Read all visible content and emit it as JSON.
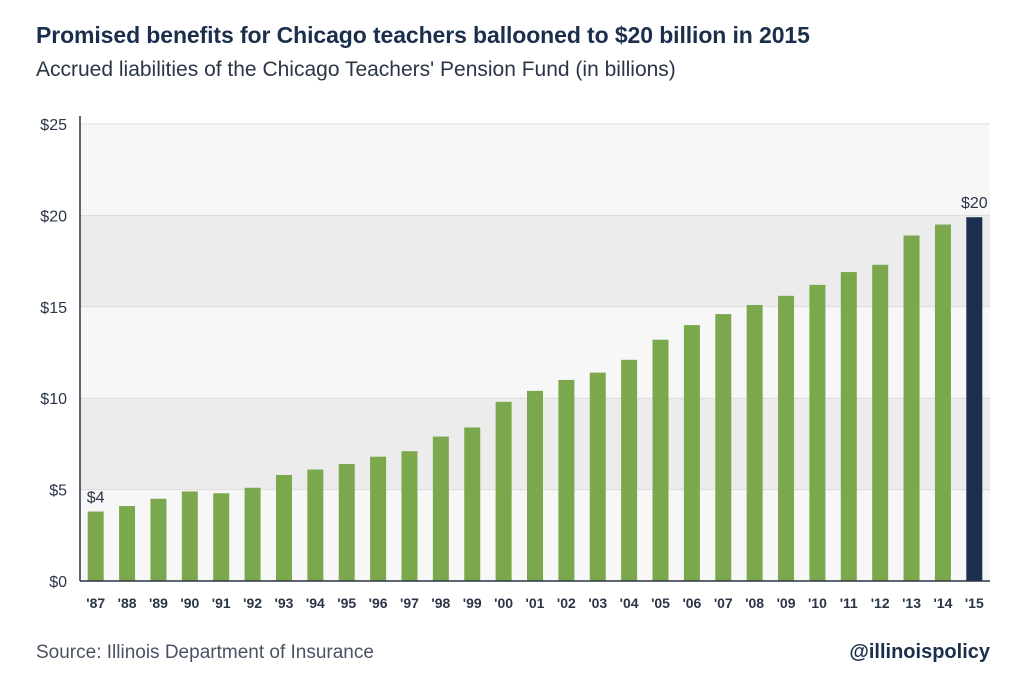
{
  "title": "Promised benefits for Chicago teachers ballooned to $20 billion in 2015",
  "subtitle": "Accrued liabilities of the Chicago Teachers' Pension Fund (in billions)",
  "source": "Source: Illinois Department of Insurance",
  "handle": "@illinoispolicy",
  "colors": {
    "bar": "#7ba84d",
    "highlight": "#1b2f4d",
    "band_dark": "#ececed",
    "band_light": "#f8f7f7",
    "axis": "#2b3547"
  },
  "chart_data": {
    "type": "bar",
    "title": "Promised benefits for Chicago teachers ballooned to $20 billion in 2015",
    "subtitle": "Accrued liabilities of the Chicago Teachers' Pension Fund (in billions)",
    "categories": [
      "'87",
      "'88",
      "'89",
      "'90",
      "'91",
      "'92",
      "'93",
      "'94",
      "'95",
      "'96",
      "'97",
      "'98",
      "'99",
      "'00",
      "'01",
      "'02",
      "'03",
      "'04",
      "'05",
      "'06",
      "'07",
      "'08",
      "'09",
      "'10",
      "'11",
      "'12",
      "'13",
      "'14",
      "'15"
    ],
    "values": [
      3.8,
      4.1,
      4.5,
      4.9,
      4.8,
      5.1,
      5.8,
      6.1,
      6.4,
      6.8,
      7.1,
      7.9,
      8.4,
      9.8,
      10.4,
      11.0,
      11.4,
      12.1,
      13.2,
      14.0,
      14.6,
      15.1,
      15.6,
      16.2,
      16.9,
      17.3,
      18.9,
      19.5,
      19.9
    ],
    "highlight_index": 28,
    "data_labels": [
      {
        "index": 0,
        "text": "$4"
      },
      {
        "index": 28,
        "text": "$20"
      }
    ],
    "yticks": [
      0,
      5,
      10,
      15,
      20,
      25
    ],
    "ytick_labels": [
      "$0",
      "$5",
      "$10",
      "$15",
      "$20",
      "$25"
    ],
    "ylim": [
      0,
      25
    ],
    "xlabel": "",
    "ylabel": "",
    "grid": true,
    "legend": "none"
  }
}
